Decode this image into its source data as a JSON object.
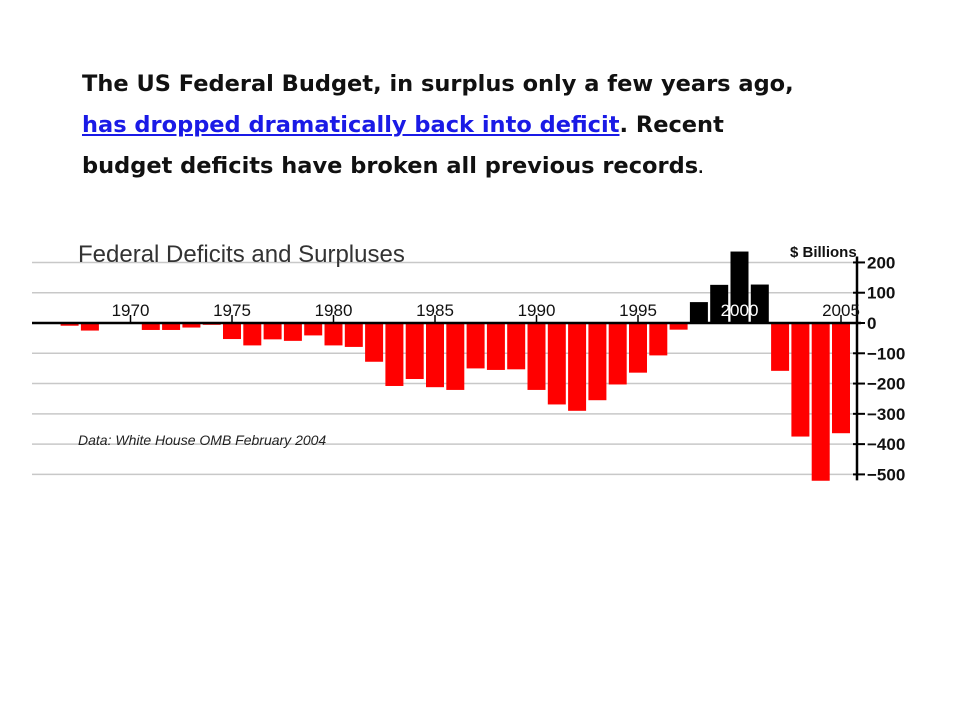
{
  "slide": {
    "line1": "The US Federal Budget, in surplus only a few years ago,",
    "link_text": "has dropped dramatically back into deficit",
    "after_link": ". Recent",
    "line3": "budget deficits have broken all previous records",
    "line3_end": "."
  },
  "chart_data": {
    "type": "bar",
    "title": "Federal Deficits and Surpluses",
    "ylabel": "$ Billions",
    "source": "Data: White House OMB February 2004",
    "ylim": [
      -500,
      200
    ],
    "yticks": [
      200,
      100,
      0,
      -100,
      -200,
      -300,
      -400,
      -500
    ],
    "xticks": [
      1970,
      1975,
      1980,
      1985,
      1990,
      1995,
      2000,
      2005
    ],
    "grid": true,
    "colors": {
      "deficit": "#ff0000",
      "surplus": "#000000"
    },
    "x": [
      1967,
      1968,
      1969,
      1970,
      1971,
      1972,
      1973,
      1974,
      1975,
      1976,
      1977,
      1978,
      1979,
      1980,
      1981,
      1982,
      1983,
      1984,
      1985,
      1986,
      1987,
      1988,
      1989,
      1990,
      1991,
      1992,
      1993,
      1994,
      1995,
      1996,
      1997,
      1998,
      1999,
      2000,
      2001,
      2002,
      2003,
      2004,
      2005
    ],
    "values": [
      -9,
      -25,
      3,
      -3,
      -23,
      -23,
      -15,
      -6,
      -53,
      -74,
      -54,
      -59,
      -41,
      -74,
      -79,
      -128,
      -208,
      -185,
      -212,
      -221,
      -150,
      -155,
      -153,
      -221,
      -269,
      -290,
      -255,
      -203,
      -164,
      -107,
      -22,
      69,
      126,
      236,
      127,
      -158,
      -375,
      -521,
      -364
    ]
  }
}
